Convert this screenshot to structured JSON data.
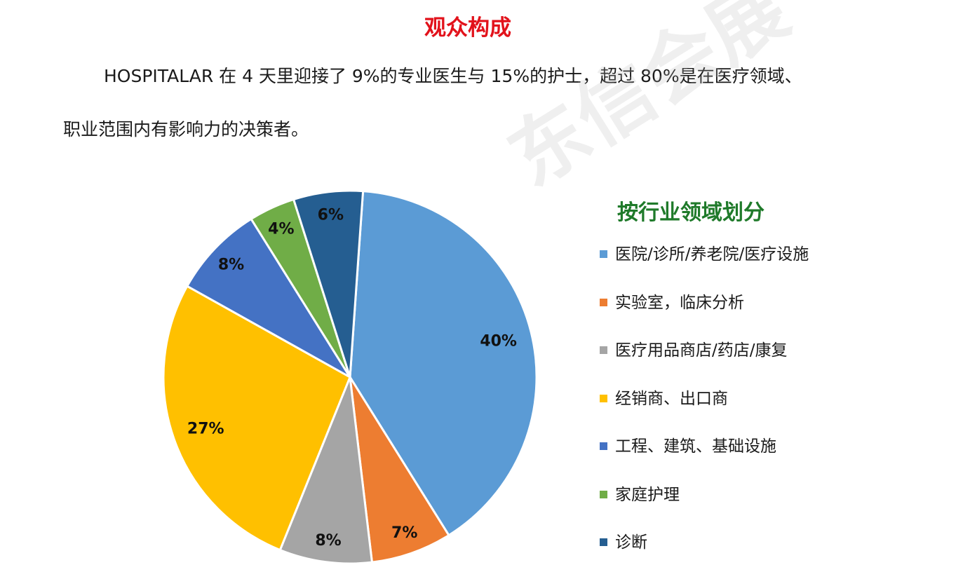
{
  "header": {
    "title": "观众构成",
    "line1": "HOSPITALAR 在 4 天里迎接了 9%的专业医生与 15%的护士，超过 80%是在医疗领域、",
    "line2": "职业范围内有影响力的决策者。"
  },
  "watermark": "东信会展",
  "chart_data": {
    "type": "pie",
    "title": "按行业领域划分",
    "title_color": "#1f7a2a",
    "legend_position": "right",
    "slices": [
      {
        "label": "医院/诊所/养老院/医疗设施",
        "value": 40,
        "value_label": "40%",
        "color": "#5b9bd5"
      },
      {
        "label": "实验室，临床分析",
        "value": 7,
        "value_label": "7%",
        "color": "#ed7d31"
      },
      {
        "label": "医疗用品商店/药店/康复",
        "value": 8,
        "value_label": "8%",
        "color": "#a5a5a5"
      },
      {
        "label": "经销商、出口商",
        "value": 27,
        "value_label": "27%",
        "color": "#ffc000"
      },
      {
        "label": "工程、建筑、基础设施",
        "value": 8,
        "value_label": "8%",
        "color": "#4472c4"
      },
      {
        "label": "家庭护理",
        "value": 4,
        "value_label": "4%",
        "color": "#70ad47"
      },
      {
        "label": "诊断",
        "value": 6,
        "value_label": "6%",
        "color": "#255e91"
      }
    ]
  }
}
